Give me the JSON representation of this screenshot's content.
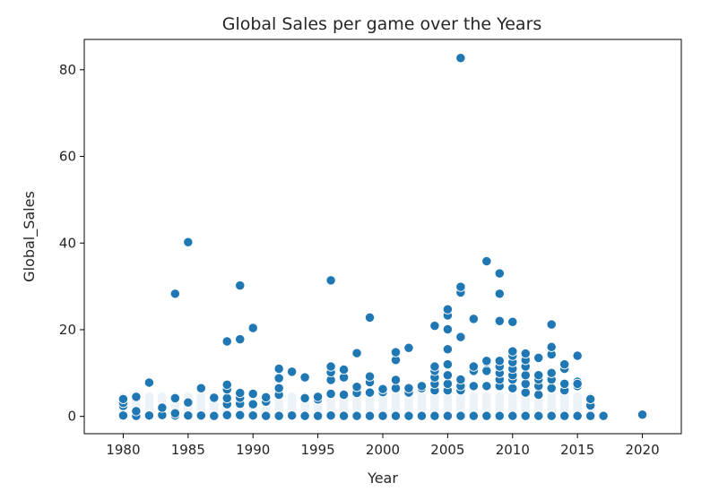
{
  "chart_data": {
    "type": "scatter",
    "title": "Global Sales per game over the Years",
    "xlabel": "Year",
    "ylabel": "Global_Sales",
    "xlim": [
      1977,
      2023
    ],
    "ylim": [
      -4,
      87
    ],
    "xticks": [
      1980,
      1985,
      1990,
      1995,
      2000,
      2005,
      2010,
      2015,
      2020
    ],
    "yticks": [
      0,
      20,
      40,
      60,
      80
    ],
    "grid": false,
    "legend": "none",
    "marker_color": "#1f77b4",
    "marker_edge": "#ffffff",
    "series": [
      {
        "x": [
          1980,
          1980,
          1980,
          1980,
          1981,
          1981,
          1981,
          1982,
          1982,
          1983,
          1983,
          1984,
          1984,
          1984,
          1984,
          1985,
          1985,
          1985,
          1986,
          1986,
          1987,
          1987,
          1988,
          1988,
          1988,
          1988,
          1988,
          1988,
          1989,
          1989,
          1989,
          1989,
          1989,
          1989,
          1990,
          1990,
          1990,
          1990,
          1991,
          1991,
          1991,
          1992,
          1992,
          1992,
          1992,
          1992,
          1993,
          1993,
          1994,
          1994,
          1994,
          1995,
          1995,
          1995,
          1996,
          1996,
          1996,
          1996,
          1996,
          1996,
          1997,
          1997,
          1997,
          1997,
          1998,
          1998,
          1998,
          1998,
          1999,
          1999,
          1999,
          1999,
          1999,
          2000,
          2000,
          2000,
          2001,
          2001,
          2001,
          2001,
          2001,
          2002,
          2002,
          2002,
          2002,
          2003,
          2003,
          2003,
          2004,
          2004,
          2004,
          2004,
          2004,
          2004,
          2004,
          2005,
          2005,
          2005,
          2005,
          2005,
          2005,
          2005,
          2005,
          2005,
          2006,
          2006,
          2006,
          2006,
          2006,
          2006,
          2006,
          2006,
          2007,
          2007,
          2007,
          2007,
          2007,
          2008,
          2008,
          2008,
          2008,
          2008,
          2008,
          2009,
          2009,
          2009,
          2009,
          2009,
          2009,
          2009,
          2009,
          2009,
          2010,
          2010,
          2010,
          2010,
          2010,
          2010,
          2010,
          2010,
          2010,
          2011,
          2011,
          2011,
          2011,
          2011,
          2011,
          2011,
          2012,
          2012,
          2012,
          2012,
          2012,
          2012,
          2013,
          2013,
          2013,
          2013,
          2013,
          2013,
          2013,
          2014,
          2014,
          2014,
          2014,
          2014,
          2015,
          2015,
          2015,
          2015,
          2015,
          2016,
          2016,
          2016,
          2017,
          2020
        ],
        "y": [
          0.2,
          2.4,
          3.1,
          4.0,
          0.1,
          1.2,
          4.5,
          0.2,
          7.8,
          0.3,
          2.0,
          0.2,
          0.7,
          4.2,
          28.3,
          0.2,
          3.2,
          40.2,
          0.2,
          6.5,
          0.1,
          4.3,
          0.3,
          2.8,
          4.2,
          6.2,
          7.3,
          17.3,
          0.3,
          2.9,
          4.3,
          5.4,
          17.8,
          30.2,
          0.2,
          2.8,
          5.2,
          20.4,
          0.1,
          3.4,
          4.4,
          0.1,
          5.0,
          6.5,
          8.8,
          11.0,
          0.2,
          10.3,
          0.1,
          4.2,
          9.0,
          0.1,
          3.9,
          4.5,
          0.2,
          5.2,
          8.4,
          10.2,
          11.5,
          31.4,
          0.1,
          5.0,
          9.0,
          10.8,
          0.1,
          5.4,
          6.8,
          14.6,
          0.1,
          5.5,
          7.9,
          9.2,
          22.8,
          0.1,
          5.6,
          6.3,
          0.1,
          6.5,
          8.4,
          13.0,
          14.8,
          0.1,
          5.5,
          6.5,
          15.8,
          0.1,
          6.5,
          7.0,
          0.1,
          6.0,
          7.5,
          9.0,
          10.5,
          11.5,
          20.9,
          0.1,
          6.0,
          7.5,
          9.5,
          12.0,
          15.5,
          20.1,
          23.3,
          24.7,
          0.1,
          6.0,
          7.0,
          8.5,
          18.3,
          28.6,
          29.9,
          82.7,
          0.1,
          7.0,
          10.5,
          11.5,
          22.5,
          0.1,
          7.0,
          10.5,
          12.5,
          35.8,
          12.8,
          0.1,
          7.0,
          8.5,
          10.0,
          11.5,
          12.8,
          22.0,
          28.3,
          33.0,
          0.1,
          6.5,
          8.5,
          9.5,
          11.0,
          12.5,
          14.0,
          15.0,
          21.8,
          0.1,
          5.5,
          7.5,
          9.5,
          11.5,
          13.0,
          14.5,
          0.1,
          5.0,
          7.0,
          8.5,
          9.5,
          13.5,
          0.1,
          6.5,
          8.5,
          10.0,
          14.3,
          16.0,
          21.2,
          0.1,
          6.0,
          7.5,
          11.0,
          12.0,
          0.1,
          7.0,
          8.0,
          14.0,
          7.5,
          0.1,
          2.5,
          4.0,
          0.1,
          0.4
        ]
      }
    ]
  }
}
